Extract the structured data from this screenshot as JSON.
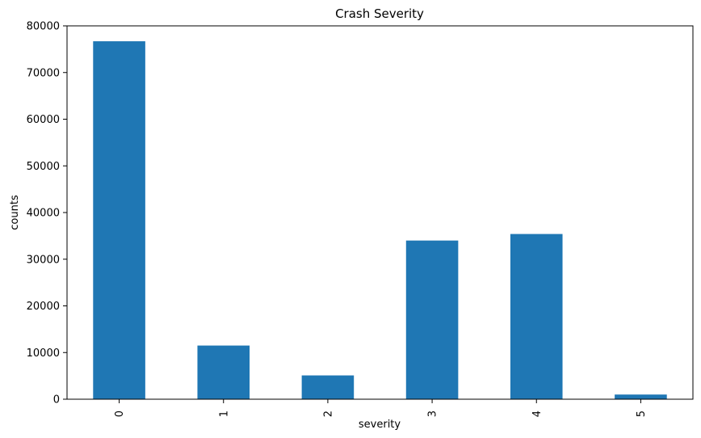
{
  "chart_data": {
    "type": "bar",
    "title": "Crash Severity",
    "xlabel": "severity",
    "ylabel": "counts",
    "categories": [
      "0",
      "1",
      "2",
      "3",
      "4",
      "5"
    ],
    "values": [
      76700,
      11500,
      5100,
      34000,
      35400,
      1000
    ],
    "ylim": [
      0,
      80000
    ],
    "yticks": [
      0,
      10000,
      20000,
      30000,
      40000,
      50000,
      60000,
      70000,
      80000
    ],
    "ytick_labels": [
      "0",
      "10000",
      "20000",
      "30000",
      "40000",
      "50000",
      "60000",
      "70000",
      "80000"
    ],
    "bar_color": "#1f77b4",
    "grid": false,
    "legend": "none"
  }
}
